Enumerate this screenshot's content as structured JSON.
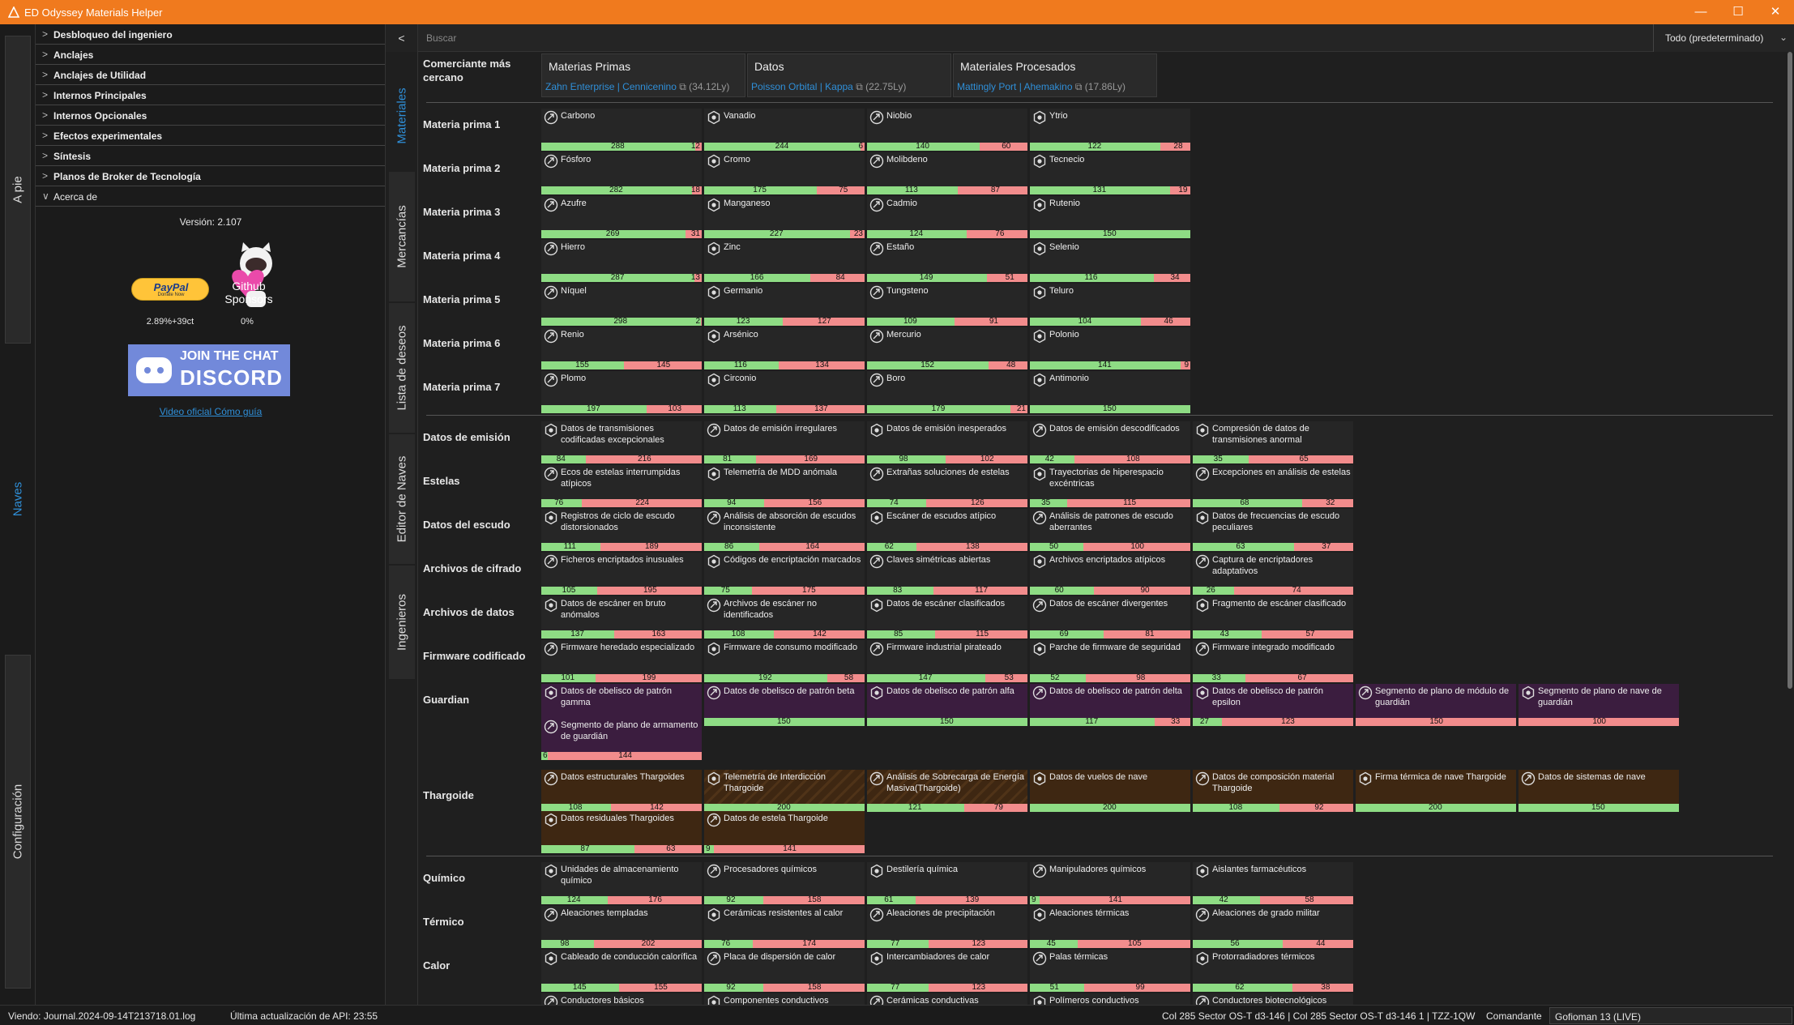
{
  "window": {
    "title": "ED Odyssey Materials Helper",
    "controls": [
      "—",
      "☐",
      "✕"
    ]
  },
  "side_tabs": [
    {
      "label": "A pie",
      "active": false
    },
    {
      "label": "Naves",
      "active": true
    },
    {
      "label": "Configuración",
      "active": false
    }
  ],
  "left_panel": {
    "sections": [
      {
        "label": "Desbloqueo del ingeniero",
        "chevron": ">"
      },
      {
        "label": "Anclajes",
        "chevron": ">"
      },
      {
        "label": "Anclajes de Utilidad",
        "chevron": ">"
      },
      {
        "label": "Internos Principales",
        "chevron": ">"
      },
      {
        "label": "Internos Opcionales",
        "chevron": ">"
      },
      {
        "label": "Efectos experimentales",
        "chevron": ">"
      },
      {
        "label": "Síntesis",
        "chevron": ">"
      },
      {
        "label": "Planos de Broker de Tecnología",
        "chevron": ">"
      },
      {
        "label": "Acerca de",
        "chevron": "∨"
      }
    ],
    "about": {
      "version": "Versión: 2.107",
      "paypal": "PayPal",
      "paypal_sub": "Donate Now",
      "github": "Github",
      "sponsors": "Sponsors",
      "paypal_stat": "2.89%+39ct",
      "github_stat": "0%",
      "discord_line1": "JOIN THE CHAT",
      "discord_line2": "DISCORD",
      "video_link": "Video oficial Cómo guía"
    }
  },
  "toolbar": {
    "collapse": "<",
    "search_placeholder": "Buscar",
    "filter_value": "Todo (predeterminado)",
    "filter_chevron": "⌄"
  },
  "sub_tabs": [
    {
      "label": "Materiales",
      "active": true
    },
    {
      "label": "Mercancías",
      "active": false
    },
    {
      "label": "Lista de deseos",
      "active": false
    },
    {
      "label": "Editor de Naves",
      "active": false
    },
    {
      "label": "Ingenieros",
      "active": false
    }
  ],
  "nearest_trader": {
    "label": "Comerciante más cercano",
    "traders": [
      {
        "heading": "Materias Primas",
        "link": "Zahn Enterprise | Cennicenino",
        "dist": "(34.12Ly)"
      },
      {
        "heading": "Datos",
        "link": "Poisson Orbital | Kappa",
        "dist": "(22.75Ly)"
      },
      {
        "heading": "Materiales Procesados",
        "link": "Mattingly Port | Ahemakino",
        "dist": "(17.86Ly)"
      }
    ]
  },
  "groups": [
    {
      "label": "Materia prima 1",
      "items": [
        {
          "name": "Carbono",
          "g": 288,
          "r": 12
        },
        {
          "name": "Vanadio",
          "g": 244,
          "r": 6
        },
        {
          "name": "Niobio",
          "g": 140,
          "r": 60
        },
        {
          "name": "Ytrio",
          "g": 122,
          "r": 28
        }
      ]
    },
    {
      "label": "Materia prima 2",
      "items": [
        {
          "name": "Fósforo",
          "g": 282,
          "r": 18
        },
        {
          "name": "Cromo",
          "g": 175,
          "r": 75
        },
        {
          "name": "Molibdeno",
          "g": 113,
          "r": 87
        },
        {
          "name": "Tecnecio",
          "g": 131,
          "r": 19
        }
      ]
    },
    {
      "label": "Materia prima 3",
      "items": [
        {
          "name": "Azufre",
          "g": 269,
          "r": 31
        },
        {
          "name": "Manganeso",
          "g": 227,
          "r": 23
        },
        {
          "name": "Cadmio",
          "g": 124,
          "r": 76
        },
        {
          "name": "Rutenio",
          "g": 150,
          "r": 0
        }
      ]
    },
    {
      "label": "Materia prima 4",
      "items": [
        {
          "name": "Hierro",
          "g": 287,
          "r": 13
        },
        {
          "name": "Zinc",
          "g": 166,
          "r": 84
        },
        {
          "name": "Estaño",
          "g": 149,
          "r": 51
        },
        {
          "name": "Selenio",
          "g": 116,
          "r": 34
        }
      ]
    },
    {
      "label": "Materia prima 5",
      "items": [
        {
          "name": "Níquel",
          "g": 298,
          "r": 2
        },
        {
          "name": "Germanio",
          "g": 123,
          "r": 127
        },
        {
          "name": "Tungsteno",
          "g": 109,
          "r": 91
        },
        {
          "name": "Teluro",
          "g": 104,
          "r": 46
        }
      ]
    },
    {
      "label": "Materia prima 6",
      "items": [
        {
          "name": "Renio",
          "g": 155,
          "r": 145
        },
        {
          "name": "Arsénico",
          "g": 116,
          "r": 134
        },
        {
          "name": "Mercurio",
          "g": 152,
          "r": 48
        },
        {
          "name": "Polonio",
          "g": 141,
          "r": 9
        }
      ]
    },
    {
      "label": "Materia prima 7",
      "items": [
        {
          "name": "Plomo",
          "g": 197,
          "r": 103
        },
        {
          "name": "Circonio",
          "g": 113,
          "r": 137
        },
        {
          "name": "Boro",
          "g": 179,
          "r": 21
        },
        {
          "name": "Antimonio",
          "g": 150,
          "r": 0
        }
      ]
    },
    {
      "label": "Datos de emisión",
      "items": [
        {
          "name": "Datos de transmisiones codificadas excepcionales",
          "g": 84,
          "r": 216
        },
        {
          "name": "Datos de emisión irregulares",
          "g": 81,
          "r": 169
        },
        {
          "name": "Datos de emisión inesperados",
          "g": 98,
          "r": 102
        },
        {
          "name": "Datos de emisión descodificados",
          "g": 42,
          "r": 108
        },
        {
          "name": "Compresión de datos de transmisiones anormal",
          "g": 35,
          "r": 65
        }
      ]
    },
    {
      "label": "Estelas",
      "items": [
        {
          "name": "Ecos de estelas interrumpidas atípicos",
          "g": 76,
          "r": 224
        },
        {
          "name": "Telemetría de MDD anómala",
          "g": 94,
          "r": 156
        },
        {
          "name": "Extrañas soluciones de estelas",
          "g": 74,
          "r": 126
        },
        {
          "name": "Trayectorias de hiperespacio excéntricas",
          "g": 35,
          "r": 115
        },
        {
          "name": "Excepciones en análisis de estelas",
          "g": 68,
          "r": 32
        }
      ]
    },
    {
      "label": "Datos del escudo",
      "items": [
        {
          "name": "Registros de ciclo de escudo distorsionados",
          "g": 111,
          "r": 189
        },
        {
          "name": "Análisis de absorción de escudos inconsistente",
          "g": 86,
          "r": 164
        },
        {
          "name": "Escáner de escudos atípico",
          "g": 62,
          "r": 138
        },
        {
          "name": "Análisis de patrones de escudo aberrantes",
          "g": 50,
          "r": 100
        },
        {
          "name": "Datos de frecuencias de escudo peculiares",
          "g": 63,
          "r": 37
        }
      ]
    },
    {
      "label": "Archivos de cifrado",
      "items": [
        {
          "name": "Ficheros encriptados inusuales",
          "g": 105,
          "r": 195
        },
        {
          "name": "Códigos de encriptación marcados",
          "g": 75,
          "r": 175
        },
        {
          "name": "Claves simétricas abiertas",
          "g": 83,
          "r": 117
        },
        {
          "name": "Archivos encriptados atípicos",
          "g": 60,
          "r": 90
        },
        {
          "name": "Captura de encriptadores adaptativos",
          "g": 26,
          "r": 74
        }
      ]
    },
    {
      "label": "Archivos de datos",
      "items": [
        {
          "name": "Datos de escáner en bruto anómalos",
          "g": 137,
          "r": 163
        },
        {
          "name": "Archivos de escáner no identificados",
          "g": 108,
          "r": 142
        },
        {
          "name": "Datos de escáner clasificados",
          "g": 85,
          "r": 115
        },
        {
          "name": "Datos de escáner divergentes",
          "g": 69,
          "r": 81
        },
        {
          "name": "Fragmento de escáner clasificado",
          "g": 43,
          "r": 57
        }
      ]
    },
    {
      "label": "Firmware codificado",
      "items": [
        {
          "name": "Firmware heredado especializado",
          "g": 101,
          "r": 199
        },
        {
          "name": "Firmware de consumo modificado",
          "g": 192,
          "r": 58
        },
        {
          "name": "Firmware industrial pirateado",
          "g": 147,
          "r": 53
        },
        {
          "name": "Parche de firmware de seguridad",
          "g": 52,
          "r": 98
        },
        {
          "name": "Firmware integrado modificado",
          "g": 33,
          "r": 67
        }
      ]
    },
    {
      "label": "Guardian",
      "items": [
        {
          "name": "Datos de obelisco de patrón gamma",
          "g": 150,
          "r": 0,
          "style": "g"
        },
        {
          "name": "Datos de obelisco de patrón beta",
          "g": 150,
          "r": 0,
          "style": "g"
        },
        {
          "name": "Datos de obelisco de patrón alfa",
          "g": 150,
          "r": 0,
          "style": "g"
        },
        {
          "name": "Datos de obelisco de patrón delta",
          "g": 117,
          "r": 33,
          "style": "g"
        },
        {
          "name": "Datos de obelisco de patrón epsilon",
          "g": 27,
          "r": 123,
          "style": "g"
        },
        {
          "name": "Segmento de plano de módulo de guardián",
          "g": 0,
          "r": 150,
          "style": "g"
        },
        {
          "name": "Segmento de plano de nave de guardián",
          "g": 0,
          "r": 100,
          "style": "g"
        },
        {
          "name": "Segmento de plano de armamento de guardián",
          "g": 6,
          "r": 144,
          "style": "g"
        }
      ]
    },
    {
      "label": "Thargoide",
      "items": [
        {
          "name": "Datos estructurales Thargoides",
          "g": 108,
          "r": 142,
          "style": "t"
        },
        {
          "name": "Telemetría de Interdicción Thargoide",
          "g": 200,
          "r": 0,
          "style": "h"
        },
        {
          "name": "Análisis de Sobrecarga de Energía Masiva(Thargoide)",
          "g": 121,
          "r": 79,
          "style": "h"
        },
        {
          "name": "Datos de vuelos de nave",
          "g": 200,
          "r": 0,
          "style": "t"
        },
        {
          "name": "Datos de composición material Thargoide",
          "g": 108,
          "r": 92,
          "style": "t"
        },
        {
          "name": "Firma térmica de nave Thargoide",
          "g": 200,
          "r": 0,
          "style": "t"
        },
        {
          "name": "Datos de sistemas de nave",
          "g": 150,
          "r": 0,
          "style": "t"
        },
        {
          "name": "Datos residuales Thargoides",
          "g": 87,
          "r": 63,
          "style": "t"
        },
        {
          "name": "Datos de estela Thargoide",
          "g": 9,
          "r": 141,
          "style": "t"
        }
      ]
    },
    {
      "label": "Químico",
      "items": [
        {
          "name": "Unidades de almacenamiento químico",
          "g": 124,
          "r": 176
        },
        {
          "name": "Procesadores químicos",
          "g": 92,
          "r": 158
        },
        {
          "name": "Destilería química",
          "g": 61,
          "r": 139
        },
        {
          "name": "Manipuladores químicos",
          "g": 9,
          "r": 141
        },
        {
          "name": "Aislantes farmacéuticos",
          "g": 42,
          "r": 58
        }
      ]
    },
    {
      "label": "Térmico",
      "items": [
        {
          "name": "Aleaciones templadas",
          "g": 98,
          "r": 202
        },
        {
          "name": "Cerámicas resistentes al calor",
          "g": 76,
          "r": 174
        },
        {
          "name": "Aleaciones de precipitación",
          "g": 77,
          "r": 123
        },
        {
          "name": "Aleaciones térmicas",
          "g": 45,
          "r": 105
        },
        {
          "name": "Aleaciones de grado militar",
          "g": 56,
          "r": 44
        }
      ]
    },
    {
      "label": "Calor",
      "items": [
        {
          "name": "Cableado de conducción calorífica",
          "g": 145,
          "r": 155
        },
        {
          "name": "Placa de dispersión de calor",
          "g": 92,
          "r": 158
        },
        {
          "name": "Intercambiadores de calor",
          "g": 77,
          "r": 123
        },
        {
          "name": "Palas térmicas",
          "g": 51,
          "r": 99
        },
        {
          "name": "Protorradiadores térmicos",
          "g": 62,
          "r": 38
        }
      ]
    },
    {
      "label": "",
      "items": [
        {
          "name": "Conductores básicos",
          "g": 0,
          "r": 0
        },
        {
          "name": "Componentes conductivos",
          "g": 0,
          "r": 0
        },
        {
          "name": "Cerámicas conductivas",
          "g": 0,
          "r": 0
        },
        {
          "name": "Polímeros conductivos",
          "g": 0,
          "r": 0
        },
        {
          "name": "Conductores biotecnológicos",
          "g": 0,
          "r": 0
        }
      ]
    }
  ],
  "status_bar": {
    "journal": "Viendo: Journal.2024-09-14T213718.01.log",
    "api": "Última actualización de API: 23:55",
    "location": "Col 285 Sector OS-T d3-146 | Col 285 Sector OS-T d3-146 1 | TZZ-1QW",
    "commander_label": "Comandante",
    "commander": "Gofioman 13 (LIVE)"
  },
  "colors": {
    "accent": "#2f8fd8",
    "titlebar": "#f07a1e",
    "have": "#8edc84",
    "need": "#f28c8c",
    "guardian": "#3b1d3f",
    "thargoid": "#3e2712"
  }
}
